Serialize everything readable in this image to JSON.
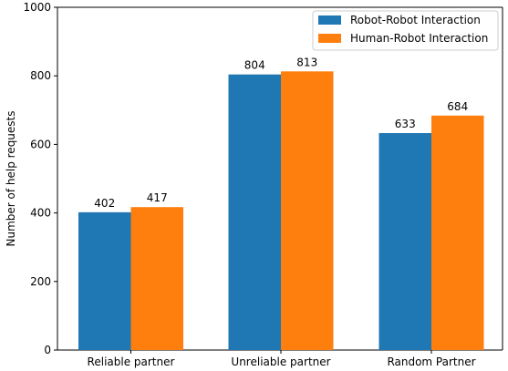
{
  "chart_data": {
    "type": "bar",
    "title": "",
    "xlabel": "",
    "ylabel": "Number of help requests",
    "categories": [
      "Reliable partner",
      "Unreliable partner",
      "Random Partner"
    ],
    "series": [
      {
        "name": "Robot-Robot Interaction",
        "values": [
          402,
          804,
          633
        ],
        "color": "#1f77b4"
      },
      {
        "name": "Human-Robot Interaction",
        "values": [
          417,
          813,
          684
        ],
        "color": "#ff7f0e"
      }
    ],
    "ylim": [
      0,
      1000
    ],
    "yticks": [
      "0",
      "200",
      "400",
      "600",
      "800",
      "1000"
    ],
    "data_labels": [
      [
        "402",
        "804",
        "633"
      ],
      [
        "417",
        "813",
        "684"
      ]
    ],
    "grid": false,
    "legend_position": "top-right"
  }
}
